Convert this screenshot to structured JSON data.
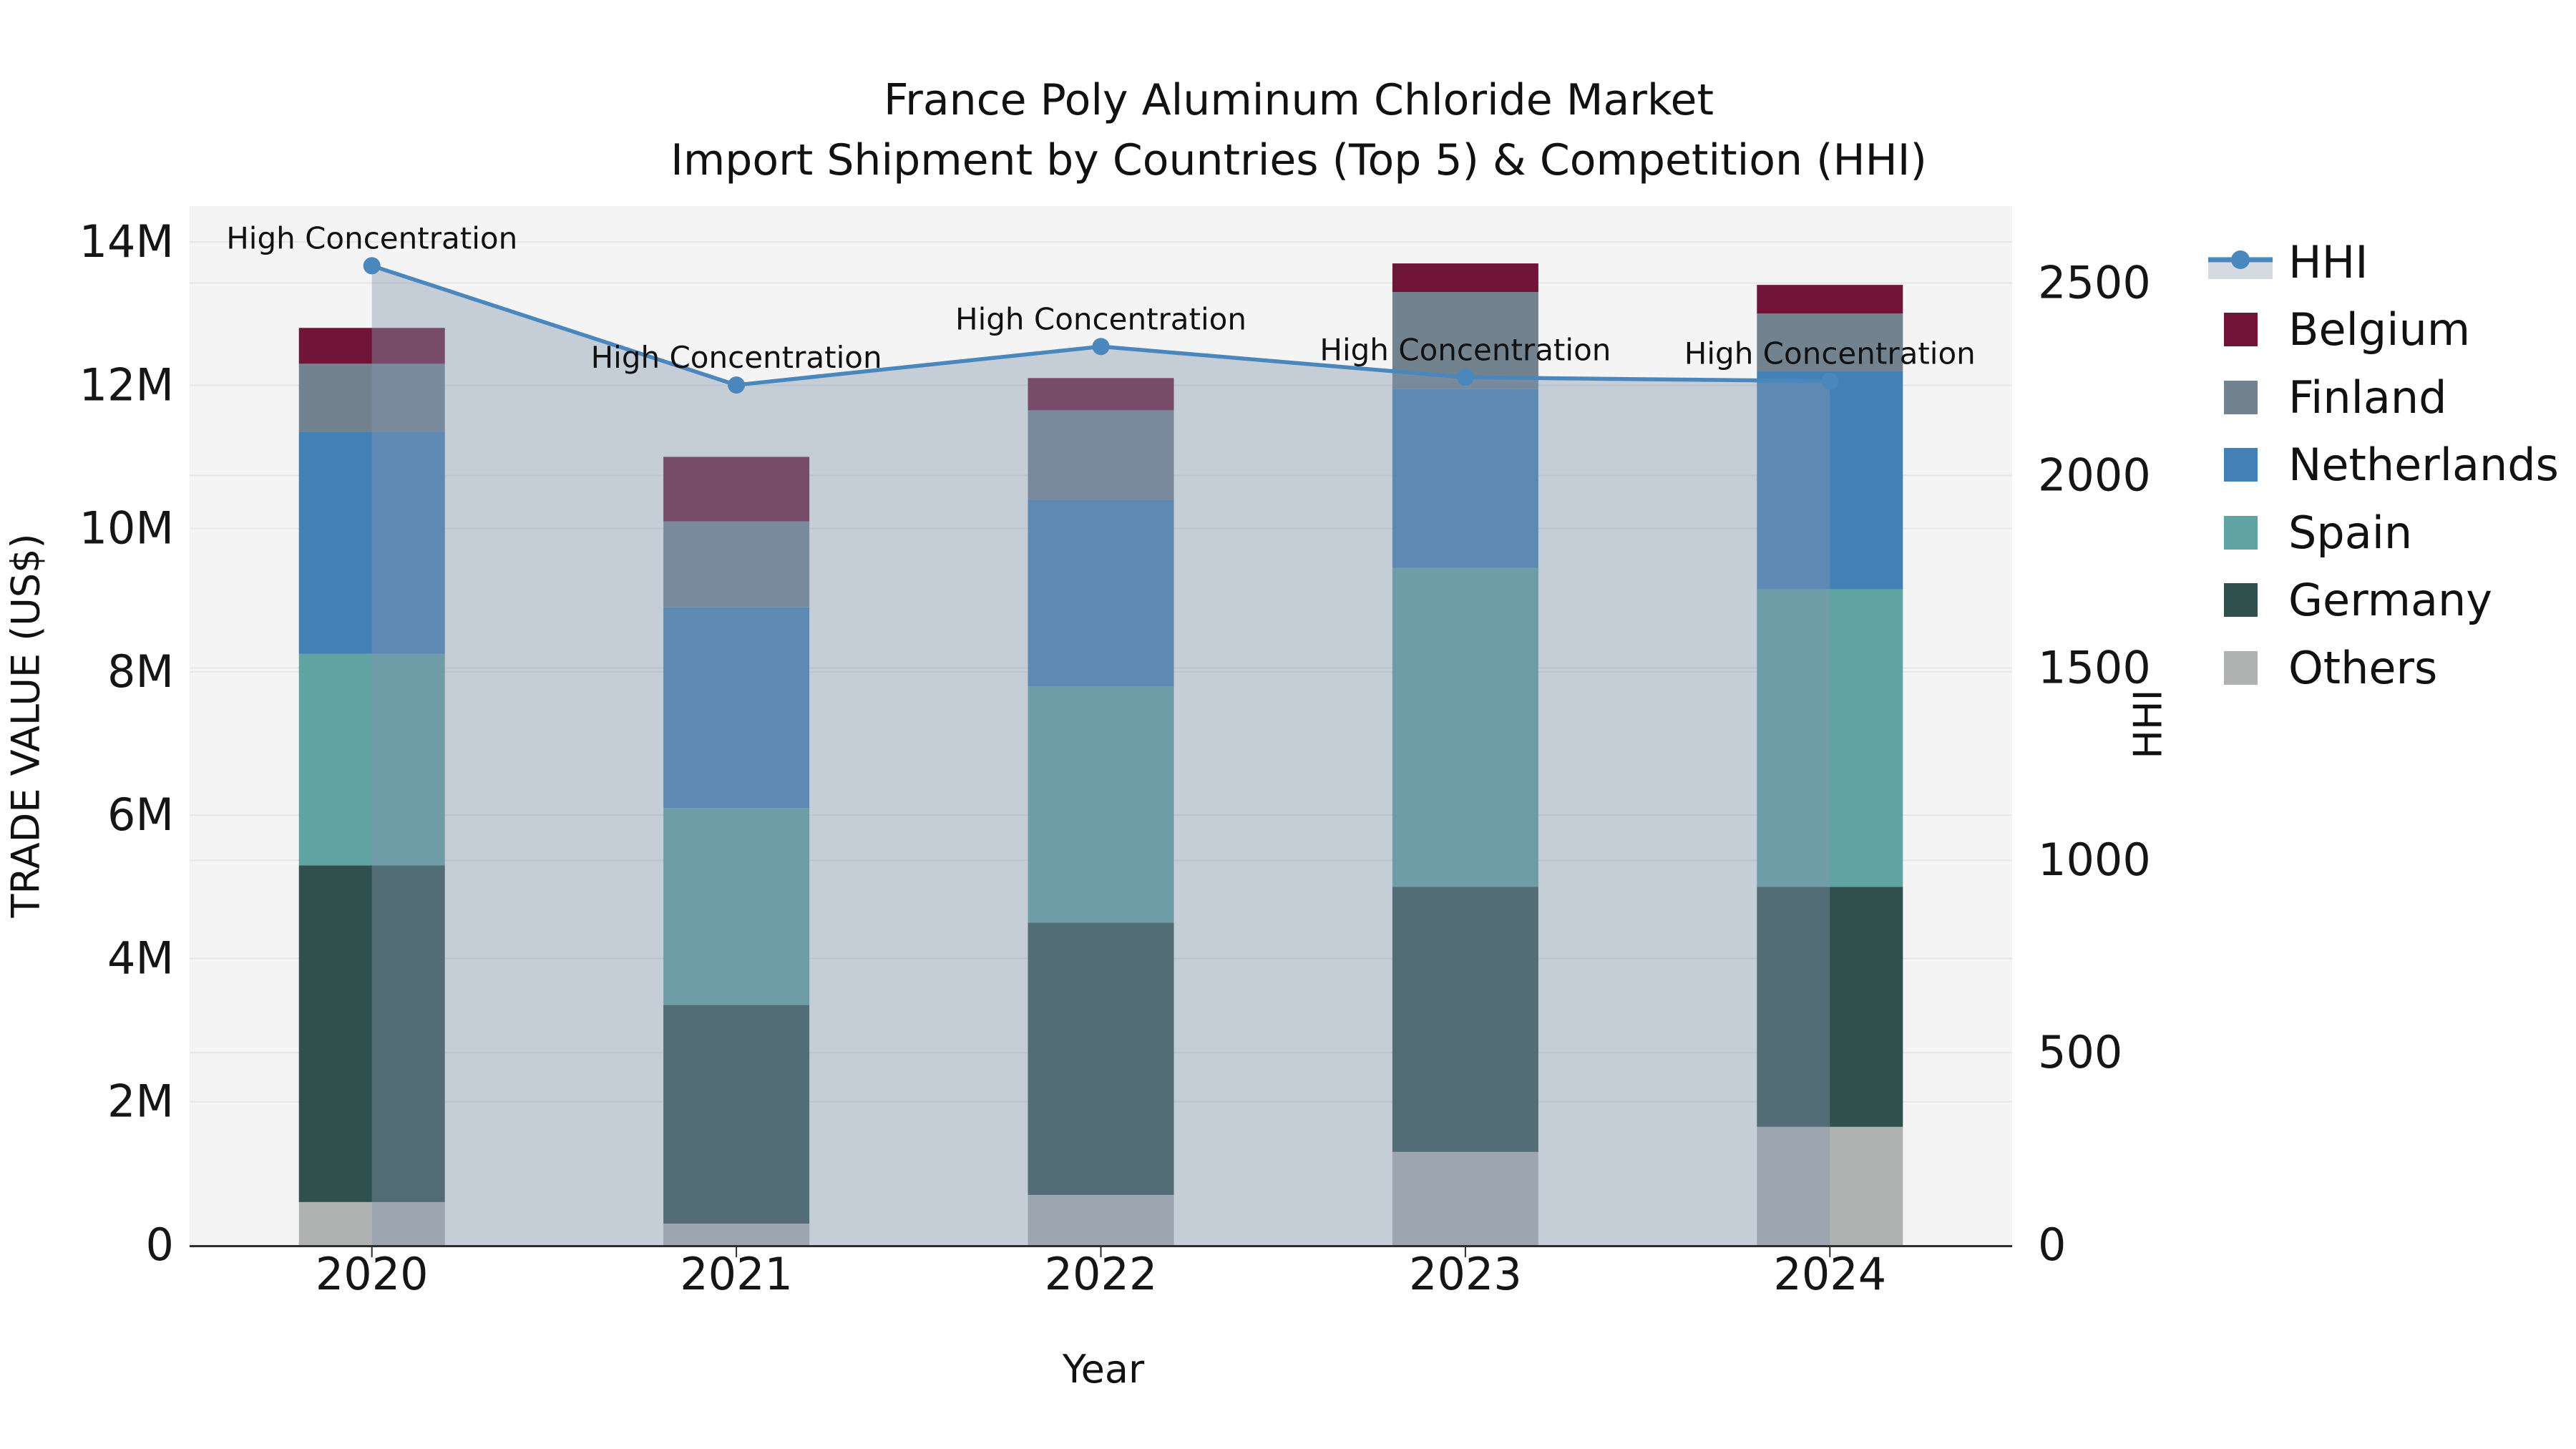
{
  "title": {
    "line1": "France Poly Aluminum Chloride Market",
    "line2": "Import Shipment by Countries (Top 5) & Competition (HHI)"
  },
  "legend": {
    "items": [
      {
        "label": "HHI",
        "type": "line",
        "color": "#4a87bd",
        "band": "#d5dbe3"
      },
      {
        "label": "Belgium",
        "type": "patch",
        "color": "#701538"
      },
      {
        "label": "Finland",
        "type": "patch",
        "color": "#73828f"
      },
      {
        "label": "Netherlands",
        "type": "patch",
        "color": "#4380b5"
      },
      {
        "label": "Spain",
        "type": "patch",
        "color": "#5fa3a3"
      },
      {
        "label": "Germany",
        "type": "patch",
        "color": "#2f504c"
      },
      {
        "label": "Others",
        "type": "patch",
        "color": "#b0b2b2"
      }
    ]
  },
  "chart_data": {
    "type": "bar",
    "subtype": "stacked-bar-with-line-dual-axis",
    "title": "France Poly Aluminum Chloride Market — Import Shipment by Countries (Top 5) & Competition (HHI)",
    "categories": [
      "2020",
      "2021",
      "2022",
      "2023",
      "2024"
    ],
    "xlabel": "Year",
    "ylabel_left": "TRADE VALUE (US$)",
    "ylabel_right": "HHI",
    "unit_left": "million US$",
    "ylim_left_musd": [
      0,
      14.5
    ],
    "ylim_right": [
      0,
      2700
    ],
    "yticks_left_musd": [
      0,
      2,
      4,
      6,
      8,
      10,
      12,
      14
    ],
    "yticks_left_labels": [
      "0",
      "2M",
      "4M",
      "6M",
      "8M",
      "10M",
      "12M",
      "14M"
    ],
    "yticks_right": [
      0,
      500,
      1000,
      1500,
      2000,
      2500
    ],
    "grid": true,
    "legend_position": "right",
    "plot_bg": "#f4f4f4",
    "grid_color": "#e6e6e6",
    "spine_color": "#2e2e2e",
    "series": [
      {
        "name": "Others",
        "color": "#b0b2b2",
        "values_musd": [
          0.6,
          0.3,
          0.7,
          1.3,
          1.65
        ]
      },
      {
        "name": "Germany",
        "color": "#2f504c",
        "values_musd": [
          4.7,
          3.05,
          3.8,
          3.7,
          3.35
        ]
      },
      {
        "name": "Spain",
        "color": "#5fa3a3",
        "values_musd": [
          2.95,
          2.75,
          3.3,
          4.45,
          4.15
        ]
      },
      {
        "name": "Netherlands",
        "color": "#4380b5",
        "values_musd": [
          3.1,
          2.8,
          2.6,
          2.5,
          3.05
        ]
      },
      {
        "name": "Finland",
        "color": "#73828f",
        "values_musd": [
          0.95,
          1.2,
          1.25,
          1.35,
          0.8
        ]
      },
      {
        "name": "Belgium",
        "color": "#701538",
        "values_musd": [
          0.5,
          0.9,
          0.45,
          0.4,
          0.4
        ]
      }
    ],
    "bar_totals_musd": [
      12.8,
      11.0,
      12.1,
      13.7,
      13.4
    ],
    "line_series": {
      "name": "HHI",
      "color": "#4a87bd",
      "marker": "circle",
      "area_fill": "rgba(130,150,175,0.42)",
      "values": [
        2545,
        2235,
        2335,
        2255,
        2245
      ]
    },
    "annotations": [
      {
        "text": "High Concentration",
        "x": "2020"
      },
      {
        "text": "High Concentration",
        "x": "2021"
      },
      {
        "text": "High Concentration",
        "x": "2022"
      },
      {
        "text": "High Concentration",
        "x": "2023"
      },
      {
        "text": "High Concentration",
        "x": "2024"
      }
    ]
  }
}
